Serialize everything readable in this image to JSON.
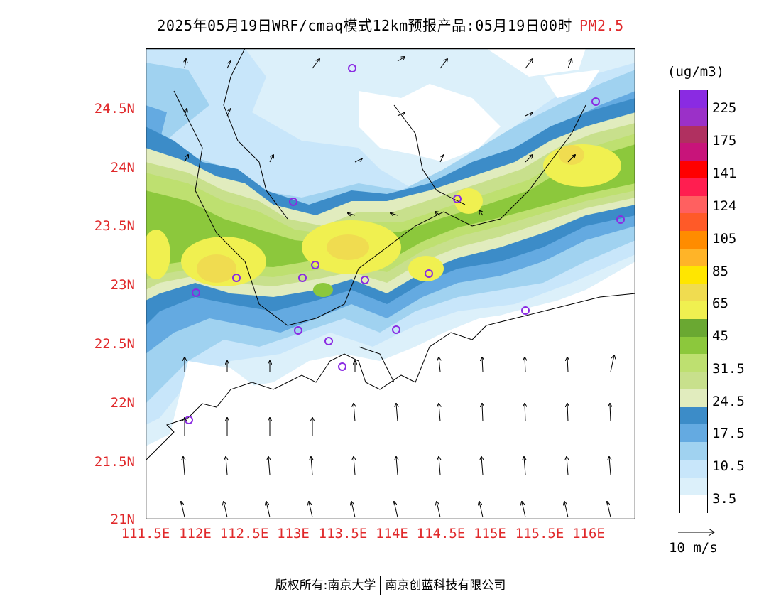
{
  "title": {
    "main": "2025年05月19日WRF/cmaq模式12km预报产品:05月19日00时",
    "pollutant": "PM2.5"
  },
  "axes": {
    "lat_labels": [
      "24.5N",
      "24N",
      "23.5N",
      "23N",
      "22.5N",
      "22N",
      "21.5N",
      "21N"
    ],
    "lon_labels": [
      "111.5E",
      "112E",
      "112.5E",
      "113E",
      "113.5E",
      "114E",
      "114.5E",
      "115E",
      "115.5E",
      "116E"
    ]
  },
  "legend": {
    "unit": "(ug/m3)",
    "labels": [
      "225",
      "175",
      "141",
      "124",
      "105",
      "85",
      "65",
      "45",
      "31.5",
      "24.5",
      "17.5",
      "10.5",
      "3.5"
    ],
    "colors": [
      "#8a2be2",
      "#9b30c8",
      "#b03060",
      "#c8147a",
      "#ff0000",
      "#ff1e50",
      "#ff6060",
      "#ff5a28",
      "#ff8c00",
      "#ffb428",
      "#ffe600",
      "#f0dc50",
      "#f0f050",
      "#6aa832",
      "#8cc83c",
      "#bee070",
      "#c8e08c",
      "#e1ecbe",
      "#3c8cc8",
      "#64aae1",
      "#a0d2f0",
      "#c8e6fa",
      "#dcf0fa",
      "#ffffff"
    ]
  },
  "wind_key": {
    "label": "10 m/s"
  },
  "footer": {
    "left": "版权所有:南京大学",
    "right": "南京创蓝科技有限公司"
  }
}
